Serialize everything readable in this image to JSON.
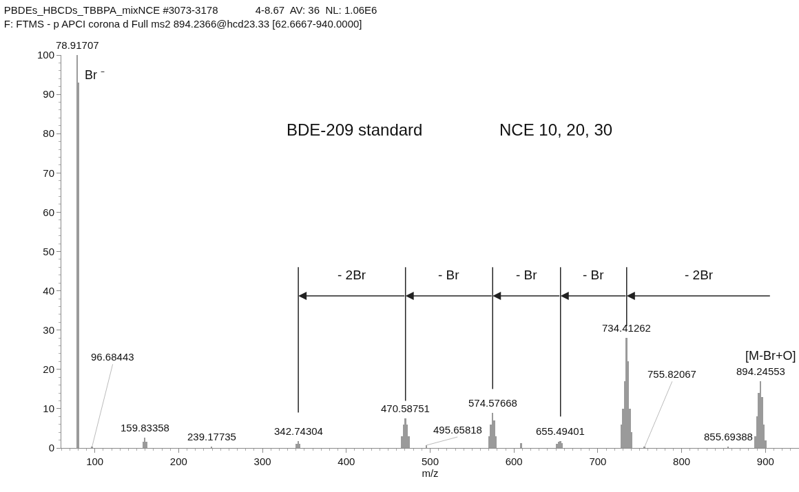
{
  "chart_data": {
    "type": "bar",
    "title": "PBDEs_HBCDs_TBBPA_mixNCE #3073-3178             4-8.67  AV: 36  NL: 1.06E6",
    "subtitle": "F: FTMS - p APCI corona d Full ms2 894.2366@hcd23.33 [62.6667-940.0000]",
    "xlabel": "m/z",
    "x": [
      78.91707,
      80.92,
      96.68443,
      157.8,
      159.83358,
      161.8,
      239.17735,
      340.7,
      342.74304,
      344.7,
      466.6,
      468.6,
      470.58751,
      472.6,
      474.6,
      495.65818,
      570.6,
      572.6,
      574.57668,
      576.6,
      578.6,
      608.5,
      651.5,
      653.5,
      655.49401,
      657.5,
      728.4,
      730.4,
      732.4,
      734.41262,
      736.4,
      738.4,
      740.4,
      755.82067,
      855.69388,
      888.2,
      890.2,
      892.2,
      894.24553,
      896.2,
      898.2,
      900.2
    ],
    "values": [
      100,
      93,
      0.3,
      1.5,
      2.6,
      1.5,
      0.3,
      1.0,
      1.7,
      1.0,
      3,
      6,
      7.5,
      6,
      3,
      0.7,
      3,
      6,
      9,
      7,
      3,
      1.2,
      1.0,
      1.5,
      1.7,
      1.2,
      6,
      10,
      17,
      28,
      22,
      10,
      4,
      0.3,
      0.3,
      3,
      8,
      14,
      17,
      13,
      6,
      2
    ],
    "color": "#9a9a9a",
    "xlim": [
      60,
      940
    ],
    "xticks": [
      100,
      200,
      300,
      400,
      500,
      600,
      700,
      800,
      900
    ],
    "ylim": [
      0,
      100
    ],
    "yticks": [
      0,
      10,
      20,
      30,
      40,
      50,
      60,
      70,
      80,
      90,
      100
    ],
    "legend": false,
    "annotations": [
      {
        "text": "78.91707",
        "x": 78.91707,
        "y": 100
      },
      {
        "text": "96.68443",
        "x": 96.68443,
        "y": 0.3
      },
      {
        "text": "159.83358",
        "x": 159.83358,
        "y": 2.6
      },
      {
        "text": "239.17735",
        "x": 239.17735,
        "y": 0.3
      },
      {
        "text": "342.74304",
        "x": 342.74304,
        "y": 1.7
      },
      {
        "text": "470.58751",
        "x": 470.58751,
        "y": 7.5
      },
      {
        "text": "495.65818",
        "x": 495.65818,
        "y": 0.7
      },
      {
        "text": "574.57668",
        "x": 574.57668,
        "y": 9
      },
      {
        "text": "655.49401",
        "x": 655.49401,
        "y": 1.7
      },
      {
        "text": "734.41262",
        "x": 734.41262,
        "y": 28
      },
      {
        "text": "755.82067",
        "x": 755.82067,
        "y": 0.3
      },
      {
        "text": "855.69388",
        "x": 855.69388,
        "y": 0.3
      },
      {
        "text": "894.24553",
        "x": 894.24553,
        "y": 17
      },
      "Br ⁻",
      "BDE-209 standard",
      "NCE 10, 20, 30",
      "[M-Br+O]",
      "- 2Br",
      "- Br",
      "- Br",
      "- Br",
      "- 2Br"
    ]
  }
}
